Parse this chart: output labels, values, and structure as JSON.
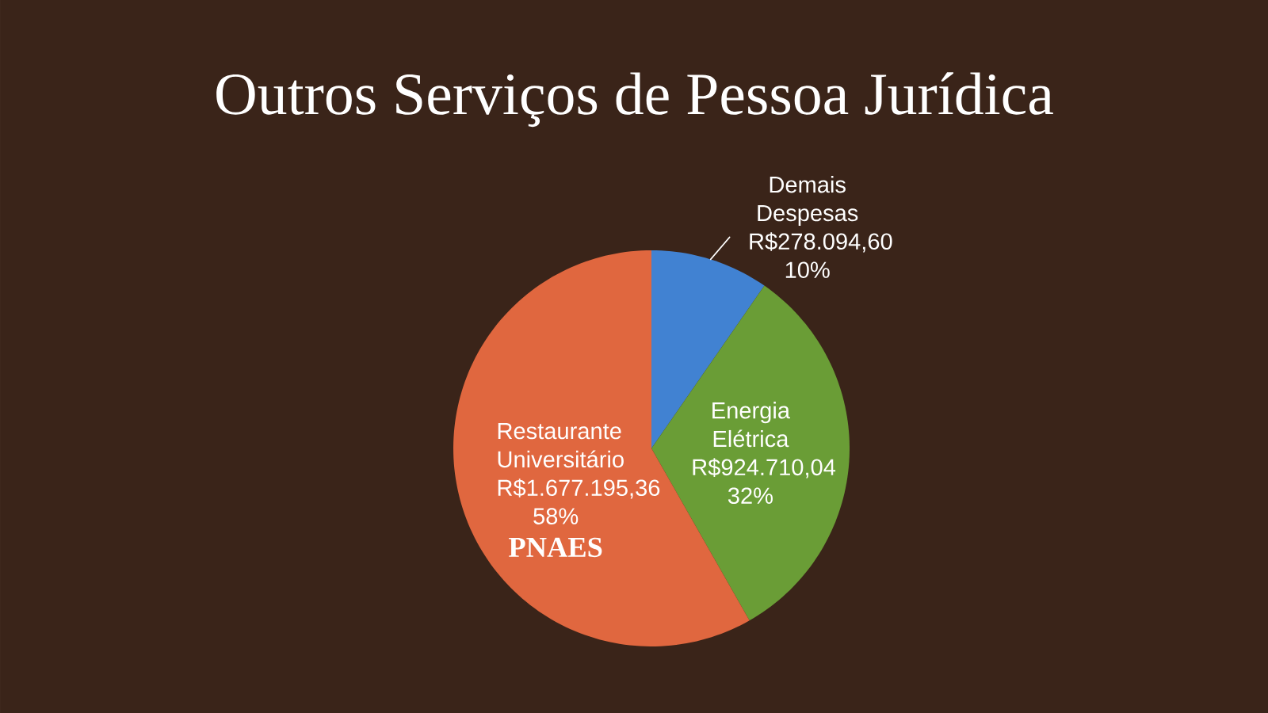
{
  "chart_data": {
    "type": "pie",
    "title": "Outros Serviços de Pessoa Jurídica",
    "categories": [
      "Demais Despesas",
      "Energia Elétrica",
      "Restaurante Universitário"
    ],
    "values": [
      278094.6,
      924710.04,
      1677195.36
    ],
    "colors": [
      "#4182D2",
      "#6A9D36",
      "#E0673F"
    ],
    "value_labels": [
      "R$278.094,60 10%",
      "R$924.710,04 32%",
      "R$1.677.195,36 58%"
    ],
    "annotations": [
      "PNAES"
    ]
  }
}
